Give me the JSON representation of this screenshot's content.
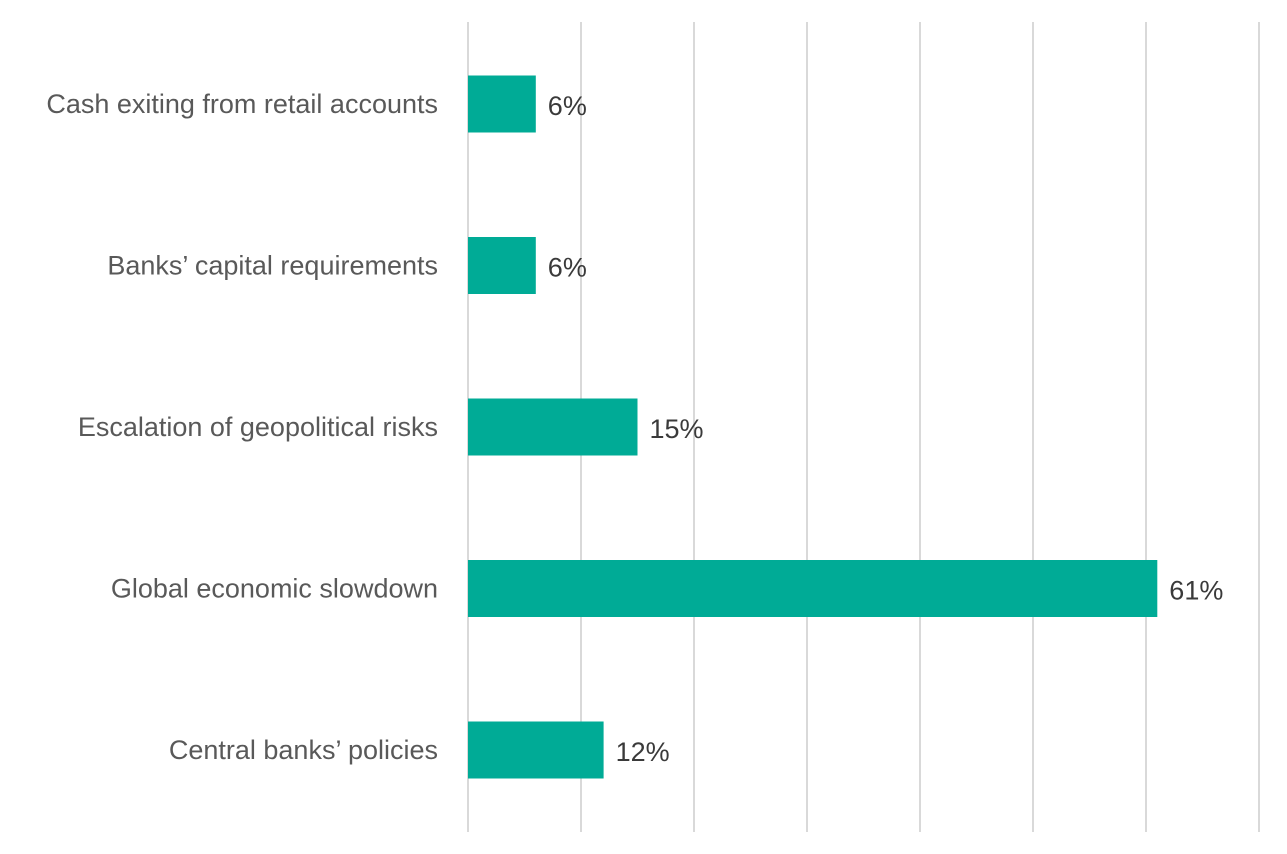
{
  "chart_data": {
    "type": "bar",
    "orientation": "horizontal",
    "categories": [
      "Cash exiting from retail accounts",
      "Banks’ capital requirements",
      "Escalation of geopolitical risks",
      "Global economic slowdown",
      "Central banks’ policies"
    ],
    "values": [
      6,
      6,
      15,
      61,
      12
    ],
    "value_labels": [
      "6%",
      "6%",
      "15%",
      "61%",
      "12%"
    ],
    "unit": "%",
    "xlim": [
      0,
      70
    ],
    "grid": true,
    "legend": "none",
    "bar_color": "#00AB96",
    "gridline_color": "#D9D9D9"
  }
}
